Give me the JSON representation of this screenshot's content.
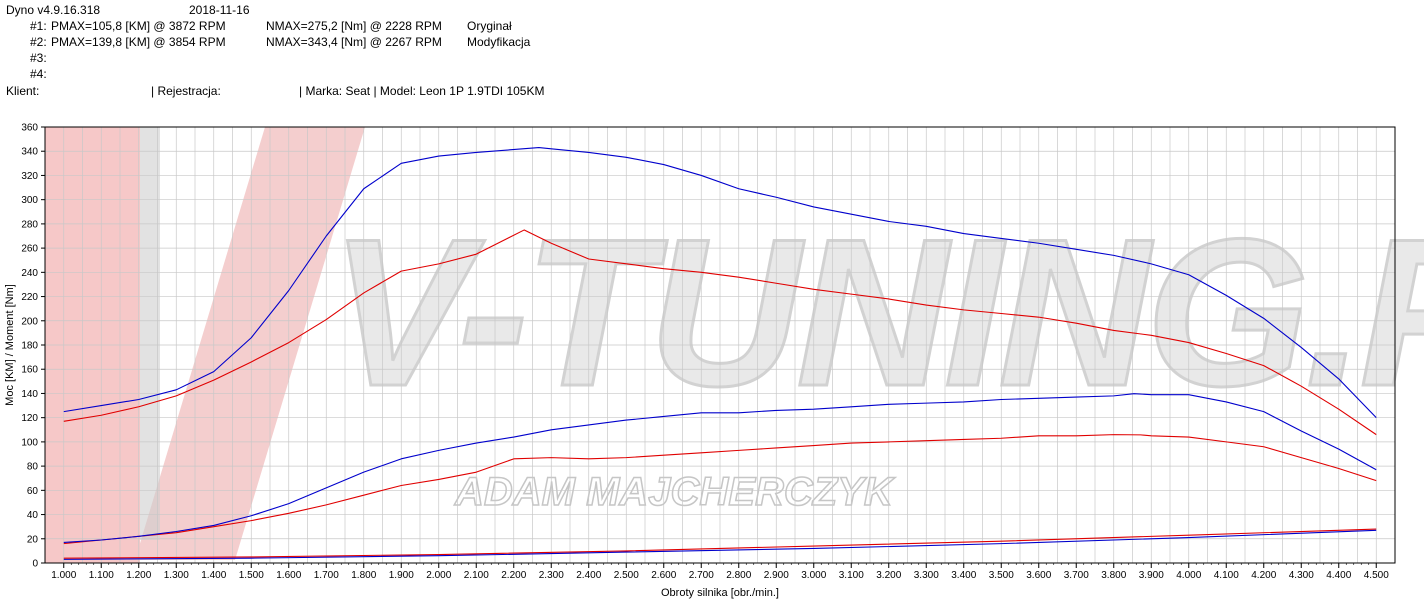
{
  "header": {
    "software": "Dyno v4.9.16.318",
    "date": "2018-11-16",
    "runs": [
      {
        "id": "#1:",
        "pmax": "PMAX=105,8 [KM] @ 3872 RPM",
        "nmax": "NMAX=275,2 [Nm] @ 2228 RPM",
        "label": "Oryginał"
      },
      {
        "id": "#2:",
        "pmax": "PMAX=139,8 [KM] @ 3854 RPM",
        "nmax": "NMAX=343,4 [Nm] @ 2267 RPM",
        "label": "Modyfikacja"
      },
      {
        "id": "#3:",
        "pmax": "",
        "nmax": "",
        "label": ""
      },
      {
        "id": "#4:",
        "pmax": "",
        "nmax": "",
        "label": ""
      }
    ],
    "client_label": "Klient:",
    "registration_label": "| Rejestracja:",
    "make_model": "| Marka: Seat | Model: Leon 1P 1.9TDI 105KM"
  },
  "watermark": {
    "brand": "V-TUNING.PL",
    "author": "ADAM MAJCHERCZYK"
  },
  "colors": {
    "original": "#e00000",
    "modified": "#0000cc",
    "grid": "#c8c8c8",
    "background": "#ffffff"
  },
  "chart_data": {
    "type": "line",
    "xlabel": "Obroty silnika [obr./min.]",
    "ylabel": "Moc [KM] / Moment [Nm]",
    "xlim": [
      0.95,
      4.55
    ],
    "ylim": [
      0,
      360
    ],
    "grid": true,
    "x_ticks": [
      "1.000",
      "1.100",
      "1.200",
      "1.300",
      "1.400",
      "1.500",
      "1.600",
      "1.700",
      "1.800",
      "1.900",
      "2.000",
      "2.100",
      "2.200",
      "2.300",
      "2.400",
      "2.500",
      "2.600",
      "2.700",
      "2.800",
      "2.900",
      "3.000",
      "3.100",
      "3.200",
      "3.300",
      "3.400",
      "3.500",
      "3.600",
      "3.700",
      "3.800",
      "3.900",
      "4.000",
      "4.100",
      "4.200",
      "4.300",
      "4.400",
      "4.500"
    ],
    "y_ticks": [
      0,
      20,
      40,
      60,
      80,
      100,
      120,
      140,
      160,
      180,
      200,
      220,
      240,
      260,
      280,
      300,
      320,
      340,
      360
    ],
    "series": [
      {
        "run": "#1",
        "kind": "torque",
        "color": "#e00000",
        "x": [
          1000,
          1100,
          1200,
          1300,
          1400,
          1500,
          1600,
          1700,
          1800,
          1900,
          2000,
          2100,
          2228,
          2300,
          2400,
          2500,
          2600,
          2700,
          2800,
          2900,
          3000,
          3100,
          3200,
          3300,
          3400,
          3500,
          3600,
          3700,
          3800,
          3900,
          4000,
          4100,
          4200,
          4300,
          4400,
          4500
        ],
        "y": [
          117,
          122,
          129,
          138,
          151,
          166,
          182,
          201,
          223,
          241,
          247,
          255,
          275,
          264,
          251,
          247,
          243,
          240,
          236,
          231,
          226,
          222,
          218,
          213,
          209,
          206,
          203,
          198,
          192,
          188,
          182,
          173,
          163,
          146,
          127,
          106
        ]
      },
      {
        "run": "#2",
        "kind": "torque",
        "color": "#0000cc",
        "x": [
          1000,
          1100,
          1200,
          1300,
          1400,
          1500,
          1600,
          1700,
          1800,
          1900,
          2000,
          2100,
          2267,
          2300,
          2400,
          2500,
          2600,
          2700,
          2800,
          2900,
          3000,
          3100,
          3200,
          3300,
          3400,
          3500,
          3600,
          3700,
          3800,
          3900,
          4000,
          4100,
          4200,
          4300,
          4400,
          4500
        ],
        "y": [
          125,
          130,
          135,
          143,
          158,
          186,
          225,
          270,
          309,
          330,
          336,
          339,
          343,
          342,
          339,
          335,
          329,
          320,
          309,
          302,
          294,
          288,
          282,
          278,
          272,
          268,
          264,
          259,
          254,
          247,
          238,
          221,
          202,
          178,
          152,
          120
        ]
      },
      {
        "run": "#1",
        "kind": "power",
        "color": "#e00000",
        "x": [
          1000,
          1100,
          1200,
          1300,
          1400,
          1500,
          1600,
          1700,
          1800,
          1900,
          2000,
          2100,
          2200,
          2300,
          2400,
          2500,
          2600,
          2700,
          2800,
          2900,
          3000,
          3100,
          3200,
          3300,
          3400,
          3500,
          3600,
          3700,
          3800,
          3872,
          3900,
          4000,
          4100,
          4200,
          4300,
          4400,
          4500
        ],
        "y": [
          16,
          19,
          22,
          25,
          30,
          35,
          41,
          48,
          56,
          64,
          69,
          75,
          86,
          87,
          86,
          87,
          89,
          91,
          93,
          95,
          97,
          99,
          100,
          101,
          102,
          103,
          105,
          105,
          106,
          105.8,
          105,
          104,
          100,
          96,
          87,
          78,
          68
        ]
      },
      {
        "run": "#2",
        "kind": "power",
        "color": "#0000cc",
        "x": [
          1000,
          1100,
          1200,
          1300,
          1400,
          1500,
          1600,
          1700,
          1800,
          1900,
          2000,
          2100,
          2200,
          2300,
          2400,
          2500,
          2600,
          2700,
          2800,
          2900,
          3000,
          3100,
          3200,
          3300,
          3400,
          3500,
          3600,
          3700,
          3800,
          3854,
          3900,
          4000,
          4100,
          4200,
          4300,
          4400,
          4500
        ],
        "y": [
          17,
          19,
          22,
          26,
          31,
          39,
          49,
          62,
          75,
          86,
          93,
          99,
          104,
          110,
          114,
          118,
          121,
          124,
          124,
          126,
          127,
          129,
          131,
          132,
          133,
          135,
          136,
          137,
          138,
          139.8,
          139,
          139,
          133,
          125,
          109,
          94,
          77
        ]
      },
      {
        "run": "#1",
        "kind": "loss",
        "color": "#e00000",
        "x": [
          1000,
          1500,
          2000,
          2500,
          3000,
          3500,
          4000,
          4500
        ],
        "y": [
          4,
          5,
          7,
          10,
          14,
          18,
          23,
          28
        ]
      },
      {
        "run": "#2",
        "kind": "loss",
        "color": "#0000cc",
        "x": [
          1000,
          1500,
          2000,
          2500,
          3000,
          3500,
          4000,
          4500
        ],
        "y": [
          3,
          4,
          6,
          9,
          12,
          16,
          21,
          27
        ]
      }
    ]
  }
}
